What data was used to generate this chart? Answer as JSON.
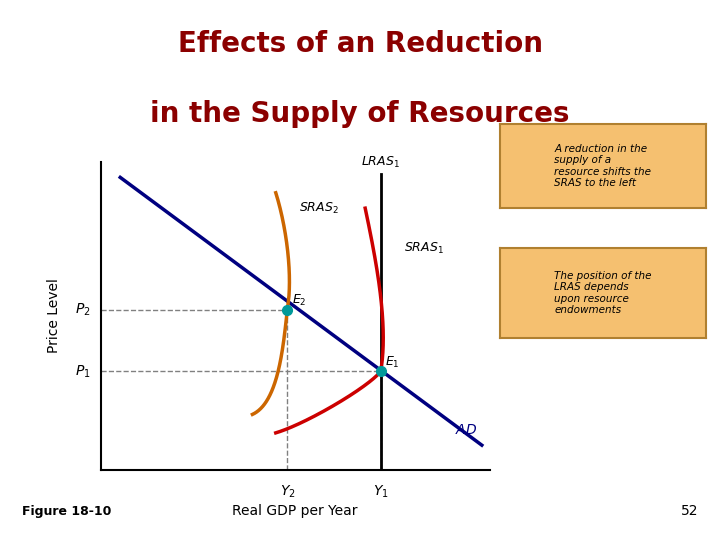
{
  "title_line1": "Effects of an Reduction",
  "title_line2": "in the Supply of Resources",
  "title_color": "#8B0000",
  "header_bg": "#9990bb",
  "xlabel": "Real GDP per Year",
  "ylabel": "Price Level",
  "figure_label": "Figure 18-10",
  "page_number": "52",
  "bg_color": "#ffffff",
  "box_bg": "#f5c070",
  "box_border": "#b08030",
  "lras_color": "#000000",
  "sras1_color": "#cc0000",
  "sras2_color": "#cc6600",
  "ad_color": "#000080",
  "dot_color": "#009999",
  "annotation1": "A reduction in the\nsupply of a\nresource shifts the\nSRAS to the left",
  "annotation2": "The position of the\nLRAS depends\nupon resource\nendowments",
  "x_Y1": 7.2,
  "x_Y2": 4.8,
  "y_P1": 3.2,
  "y_P2": 5.2,
  "xlim": [
    0,
    10
  ],
  "ylim": [
    0,
    10
  ]
}
